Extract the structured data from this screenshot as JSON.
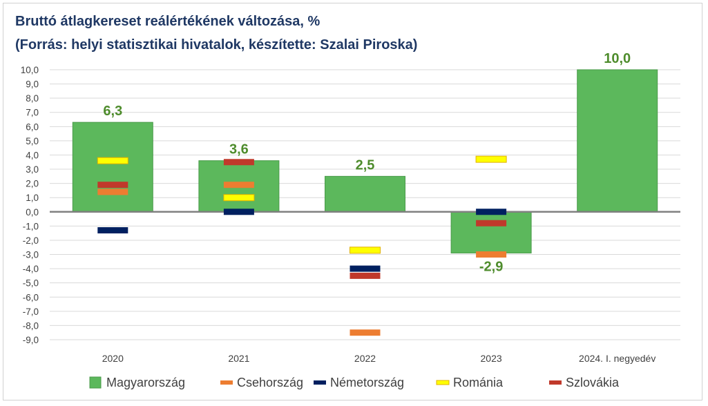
{
  "chart_data": {
    "type": "bar",
    "title": "Bruttó átlagkereset reálértékének változása, %",
    "subtitle": "(Forrás: helyi statisztikai hivatalok, készítette: Szalai Piroska)",
    "categories": [
      "2020",
      "2021",
      "2022",
      "2023",
      "2024. I. negyedév"
    ],
    "ylim": [
      -9,
      10
    ],
    "ytick_labels": [
      "10,0",
      "9,0",
      "8,0",
      "7,0",
      "6,0",
      "5,0",
      "4,0",
      "3,0",
      "2,0",
      "1,0",
      "0,0",
      "-1,0",
      "-2,0",
      "-3,0",
      "-4,0",
      "-5,0",
      "-6,0",
      "-7,0",
      "-8,0",
      "-9,0"
    ],
    "grid": true,
    "legend_position": "bottom",
    "series": [
      {
        "name": "Magyarország",
        "marker": "bar",
        "color": "#5cb85c",
        "values": [
          6.3,
          3.6,
          2.5,
          -2.9,
          10.0
        ],
        "data_labels": [
          "6,3",
          "3,6",
          "2,5",
          "-2,9",
          "10,0"
        ]
      },
      {
        "name": "Csehország",
        "marker": "dash",
        "color": "#ed7d31",
        "values": [
          1.4,
          1.9,
          -8.5,
          -3.0,
          null
        ]
      },
      {
        "name": "Németország",
        "marker": "dash",
        "color": "#002060",
        "values": [
          -1.3,
          0.0,
          -4.0,
          0.0,
          null
        ]
      },
      {
        "name": "Románia",
        "marker": "dash",
        "color": "#ffff00",
        "values": [
          3.6,
          1.0,
          -2.7,
          3.7,
          null
        ]
      },
      {
        "name": "Szlovákia",
        "marker": "dash",
        "color": "#c0392b",
        "values": [
          1.9,
          3.5,
          -4.5,
          -0.8,
          null
        ]
      }
    ]
  }
}
